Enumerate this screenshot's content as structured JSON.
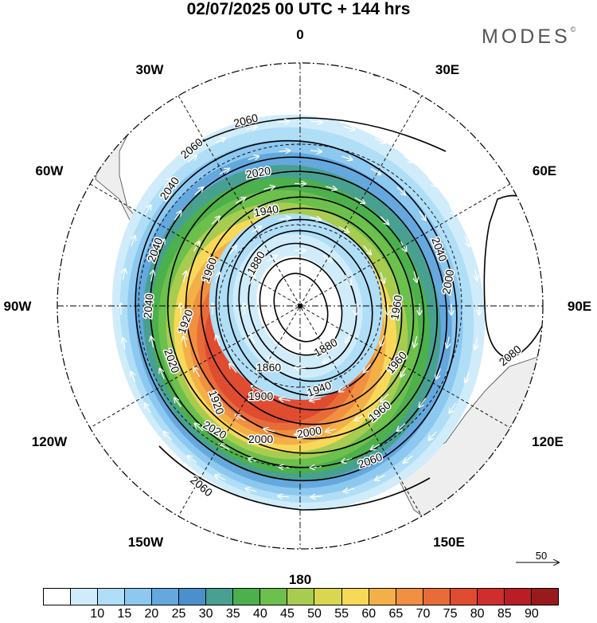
{
  "title": "02/07/2025  00 UTC  + 144 hrs",
  "logo": {
    "text": "MODES",
    "mark": "©"
  },
  "longitude_labels": [
    "0",
    "30E",
    "60E",
    "90E",
    "120E",
    "150E",
    "180",
    "150W",
    "120W",
    "90W",
    "60W",
    "30W"
  ],
  "contour_levels": [
    "2060",
    "2060",
    "2020",
    "2040",
    "2040",
    "2040",
    "1940",
    "1960",
    "1880",
    "2040",
    "2000",
    "1960",
    "1960",
    "1920",
    "1860",
    "1880",
    "1920",
    "1940",
    "2020",
    "1900",
    "2020",
    "2000",
    "2000",
    "2060",
    "2060",
    "2080",
    "1960"
  ],
  "wind_reference": {
    "value": "50"
  },
  "colors": {
    "land": "#eeeeee",
    "contour": "#000000",
    "wind_arrow": "#ffffff",
    "center_marker": "#000000"
  },
  "colorbar": {
    "colors": [
      "#ffffff",
      "#d0ecfa",
      "#b0def7",
      "#8cc8ef",
      "#64a8de",
      "#4a90cc",
      "#48a090",
      "#4cb04c",
      "#6cc04c",
      "#a8cc50",
      "#d8d850",
      "#f8d858",
      "#f4b048",
      "#f09040",
      "#e86c38",
      "#e04c30",
      "#d02e2c",
      "#b81e24",
      "#981a1c"
    ],
    "ticks": [
      "10",
      "15",
      "20",
      "25",
      "30",
      "35",
      "40",
      "45",
      "50",
      "55",
      "60",
      "65",
      "70",
      "75",
      "80",
      "85",
      "90"
    ]
  },
  "jet_speed_bands": [
    {
      "speed": 12,
      "color": "#d0ecfa"
    },
    {
      "speed": 20,
      "color": "#b0def7"
    },
    {
      "speed": 27,
      "color": "#8cc8ef"
    },
    {
      "speed": 33,
      "color": "#64a8de"
    },
    {
      "speed": 40,
      "color": "#48a090"
    },
    {
      "speed": 47,
      "color": "#4cb04c"
    },
    {
      "speed": 53,
      "color": "#6cc04c"
    },
    {
      "speed": 57,
      "color": "#a8cc50"
    },
    {
      "speed": 62,
      "color": "#f8d858"
    },
    {
      "speed": 67,
      "color": "#f4b048"
    },
    {
      "speed": 72,
      "color": "#f09040"
    },
    {
      "speed": 77,
      "color": "#e86c38"
    },
    {
      "speed": 82,
      "color": "#e04c30"
    }
  ]
}
